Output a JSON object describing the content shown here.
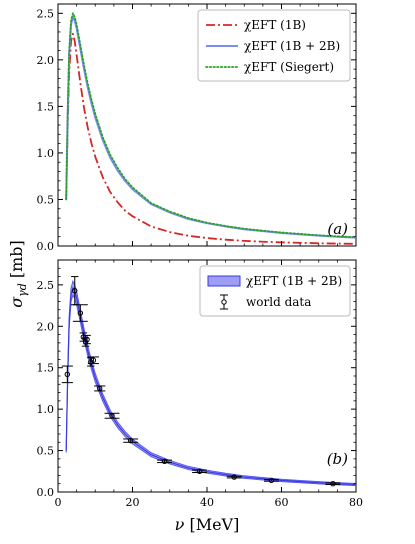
{
  "chart_data": [
    {
      "type": "line",
      "panel_label": "(a)",
      "xlim": [
        0,
        80
      ],
      "ylim": [
        0,
        2.6
      ],
      "x_ticks": [
        "0",
        "20",
        "40",
        "60",
        "80"
      ],
      "y_ticks": [
        "0.0",
        "0.5",
        "1.0",
        "1.5",
        "2.0",
        "2.5"
      ],
      "grid": false,
      "legend_position": "top-right",
      "series": [
        {
          "name": "χEFT (1B)",
          "color": "#d62728",
          "style": "dash-dot",
          "x": [
            2.2,
            2.6,
            3.0,
            3.5,
            4.0,
            4.5,
            5.0,
            6,
            7,
            8,
            9,
            10,
            12,
            14,
            16,
            18,
            20,
            25,
            30,
            35,
            40,
            45,
            50,
            55,
            60,
            65,
            70,
            75,
            80
          ],
          "y": [
            0.5,
            1.3,
            1.85,
            2.2,
            2.28,
            2.2,
            2.05,
            1.75,
            1.48,
            1.27,
            1.1,
            0.96,
            0.74,
            0.58,
            0.47,
            0.38,
            0.32,
            0.21,
            0.15,
            0.11,
            0.085,
            0.068,
            0.055,
            0.046,
            0.039,
            0.034,
            0.029,
            0.026,
            0.023
          ]
        },
        {
          "name": "χEFT (1B + 2B)",
          "color": "#7b8cf5",
          "style": "solid",
          "x": [
            2.2,
            2.6,
            3.0,
            3.5,
            4.0,
            4.5,
            5.0,
            6,
            7,
            8,
            9,
            10,
            12,
            14,
            16,
            18,
            20,
            25,
            30,
            35,
            40,
            45,
            50,
            55,
            60,
            65,
            70,
            75,
            80
          ],
          "y": [
            0.5,
            1.4,
            2.05,
            2.38,
            2.46,
            2.42,
            2.34,
            2.12,
            1.9,
            1.7,
            1.53,
            1.38,
            1.14,
            0.95,
            0.81,
            0.7,
            0.61,
            0.45,
            0.36,
            0.29,
            0.245,
            0.21,
            0.18,
            0.16,
            0.14,
            0.125,
            0.112,
            0.1,
            0.09
          ]
        },
        {
          "name": "χEFT (Siegert)",
          "color": "#2ca02c",
          "style": "dotted",
          "x": [
            2.2,
            2.6,
            3.0,
            3.5,
            4.0,
            4.5,
            5.0,
            6,
            7,
            8,
            9,
            10,
            12,
            14,
            16,
            18,
            20,
            25,
            30,
            35,
            40,
            45,
            50,
            55,
            60,
            65,
            70,
            75,
            80
          ],
          "y": [
            0.5,
            1.45,
            2.1,
            2.42,
            2.5,
            2.46,
            2.38,
            2.16,
            1.94,
            1.74,
            1.57,
            1.42,
            1.17,
            0.98,
            0.84,
            0.72,
            0.63,
            0.46,
            0.37,
            0.3,
            0.25,
            0.215,
            0.185,
            0.165,
            0.145,
            0.13,
            0.115,
            0.104,
            0.094
          ]
        }
      ]
    },
    {
      "type": "line",
      "panel_label": "(b)",
      "xlim": [
        0,
        80
      ],
      "ylim": [
        0,
        2.8
      ],
      "x_ticks": [
        "0",
        "20",
        "40",
        "60",
        "80"
      ],
      "y_ticks": [
        "0.0",
        "0.5",
        "1.0",
        "1.5",
        "2.0",
        "2.5"
      ],
      "grid": false,
      "legend_position": "top-right",
      "xlabel": "ν [MeV]",
      "series": [
        {
          "name": "χEFT (1B + 2B)",
          "kind": "band",
          "color": "#5b5bf0",
          "x": [
            2.2,
            2.6,
            3.0,
            3.5,
            4.0,
            4.5,
            5.0,
            6,
            7,
            8,
            9,
            10,
            12,
            14,
            16,
            18,
            20,
            25,
            30,
            35,
            40,
            45,
            50,
            55,
            60,
            65,
            70,
            75,
            80
          ],
          "y": [
            0.5,
            1.4,
            2.05,
            2.38,
            2.46,
            2.42,
            2.34,
            2.12,
            1.9,
            1.7,
            1.53,
            1.38,
            1.14,
            0.95,
            0.81,
            0.7,
            0.61,
            0.45,
            0.36,
            0.29,
            0.245,
            0.21,
            0.18,
            0.16,
            0.14,
            0.125,
            0.112,
            0.1,
            0.09
          ]
        },
        {
          "name": "world data",
          "kind": "errorbar",
          "color": "#000000",
          "points": [
            {
              "x": 2.5,
              "y": 1.42,
              "err": 0.1,
              "xerr": 1.5
            },
            {
              "x": 4.5,
              "y": 2.43,
              "err": 0.17,
              "xerr": 1.0
            },
            {
              "x": 6.0,
              "y": 2.16,
              "err": 0.1,
              "xerr": 2.0
            },
            {
              "x": 6.8,
              "y": 1.87,
              "err": 0.05,
              "xerr": 1.0
            },
            {
              "x": 7.4,
              "y": 1.81,
              "err": 0.05,
              "xerr": 1.0
            },
            {
              "x": 7.8,
              "y": 1.84,
              "err": 0.05,
              "xerr": 1.0
            },
            {
              "x": 8.8,
              "y": 1.57,
              "err": 0.05,
              "xerr": 1.0
            },
            {
              "x": 9.5,
              "y": 1.59,
              "err": 0.04,
              "xerr": 1.5
            },
            {
              "x": 11.2,
              "y": 1.25,
              "err": 0.03,
              "xerr": 1.5
            },
            {
              "x": 14.5,
              "y": 0.92,
              "err": 0.03,
              "xerr": 2.0
            },
            {
              "x": 19.5,
              "y": 0.62,
              "err": 0.02,
              "xerr": 2.0
            },
            {
              "x": 28.6,
              "y": 0.37,
              "err": 0.015,
              "xerr": 2.0
            },
            {
              "x": 38.0,
              "y": 0.25,
              "err": 0.015,
              "xerr": 2.0
            },
            {
              "x": 47.3,
              "y": 0.18,
              "err": 0.01,
              "xerr": 2.0
            },
            {
              "x": 57.3,
              "y": 0.14,
              "err": 0.01,
              "xerr": 2.0
            },
            {
              "x": 73.8,
              "y": 0.1,
              "err": 0.01,
              "xerr": 2.0
            }
          ]
        }
      ]
    }
  ],
  "shared_ylabel": "σγd [mb]"
}
